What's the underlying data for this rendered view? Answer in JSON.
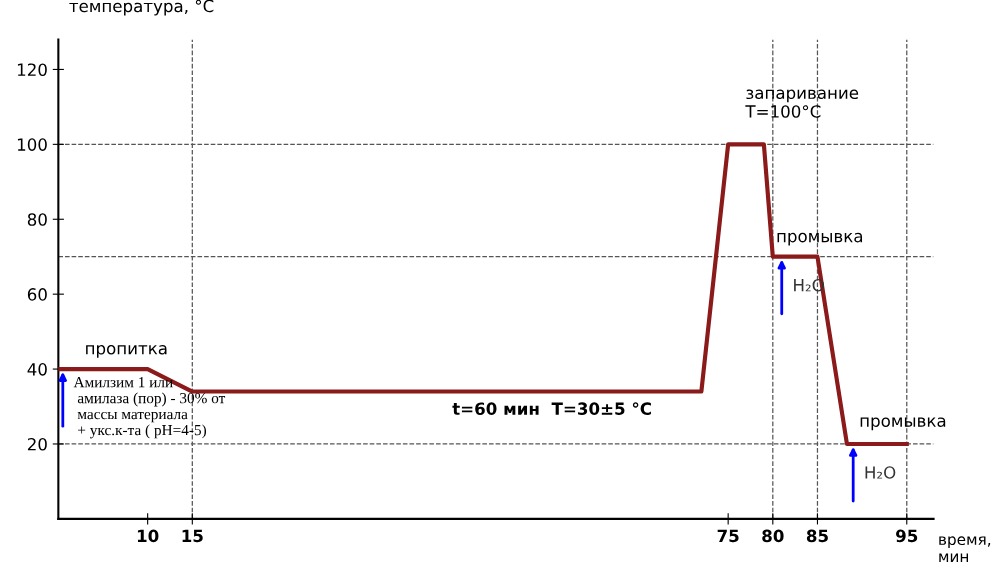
{
  "chart_data": {
    "type": "line",
    "xlabel": "время,\nмин",
    "ylabel": "температура, °C",
    "x": [
      0,
      10,
      15,
      72,
      75,
      79,
      80,
      85,
      88.3,
      95
    ],
    "series": [
      {
        "color": "#8b1a1a",
        "values": [
          40,
          40,
          34,
          34,
          100,
          100,
          70,
          70,
          20,
          20
        ]
      }
    ],
    "xlim": [
      0,
      98
    ],
    "xticks": [
      10,
      15,
      75,
      80,
      85,
      95
    ],
    "ylim": [
      0,
      128
    ],
    "yticks": [
      20,
      40,
      60,
      80,
      100,
      120
    ],
    "grid": false,
    "marker": "none",
    "line_style": "solid",
    "legend": false,
    "ref_lines": [
      {
        "axis": "y",
        "value": 100,
        "color": "#555555",
        "line_style": "dashed"
      },
      {
        "axis": "y",
        "value": 70,
        "color": "#555555",
        "line_style": "dashed"
      },
      {
        "axis": "y",
        "value": 20,
        "color": "#555555",
        "line_style": "dashed"
      },
      {
        "axis": "x",
        "value": 15,
        "color": "#555555",
        "line_style": "dashed"
      },
      {
        "axis": "x",
        "value": 80,
        "color": "#555555",
        "line_style": "dashed"
      },
      {
        "axis": "x",
        "value": 85,
        "color": "#555555",
        "line_style": "dashed"
      },
      {
        "axis": "x",
        "value": 95,
        "color": "#555555",
        "line_style": "dashed"
      }
    ],
    "annotations": [
      "пропитка",
      {
        "text": "Амилзим 1 или\n амилаза (пор) - 30% от\n массы материала\n + укс.к-та ( pH=4-5)",
        "x": 0.5,
        "y": 40
      },
      "t=60 мин  T=30±5 °C",
      "запаривание\nT=100°C",
      "промывка",
      {
        "text": "H₂O",
        "x": 81,
        "y": 70
      },
      "промывка",
      {
        "text": "H₂O",
        "x": 89,
        "y": 20
      }
    ]
  }
}
